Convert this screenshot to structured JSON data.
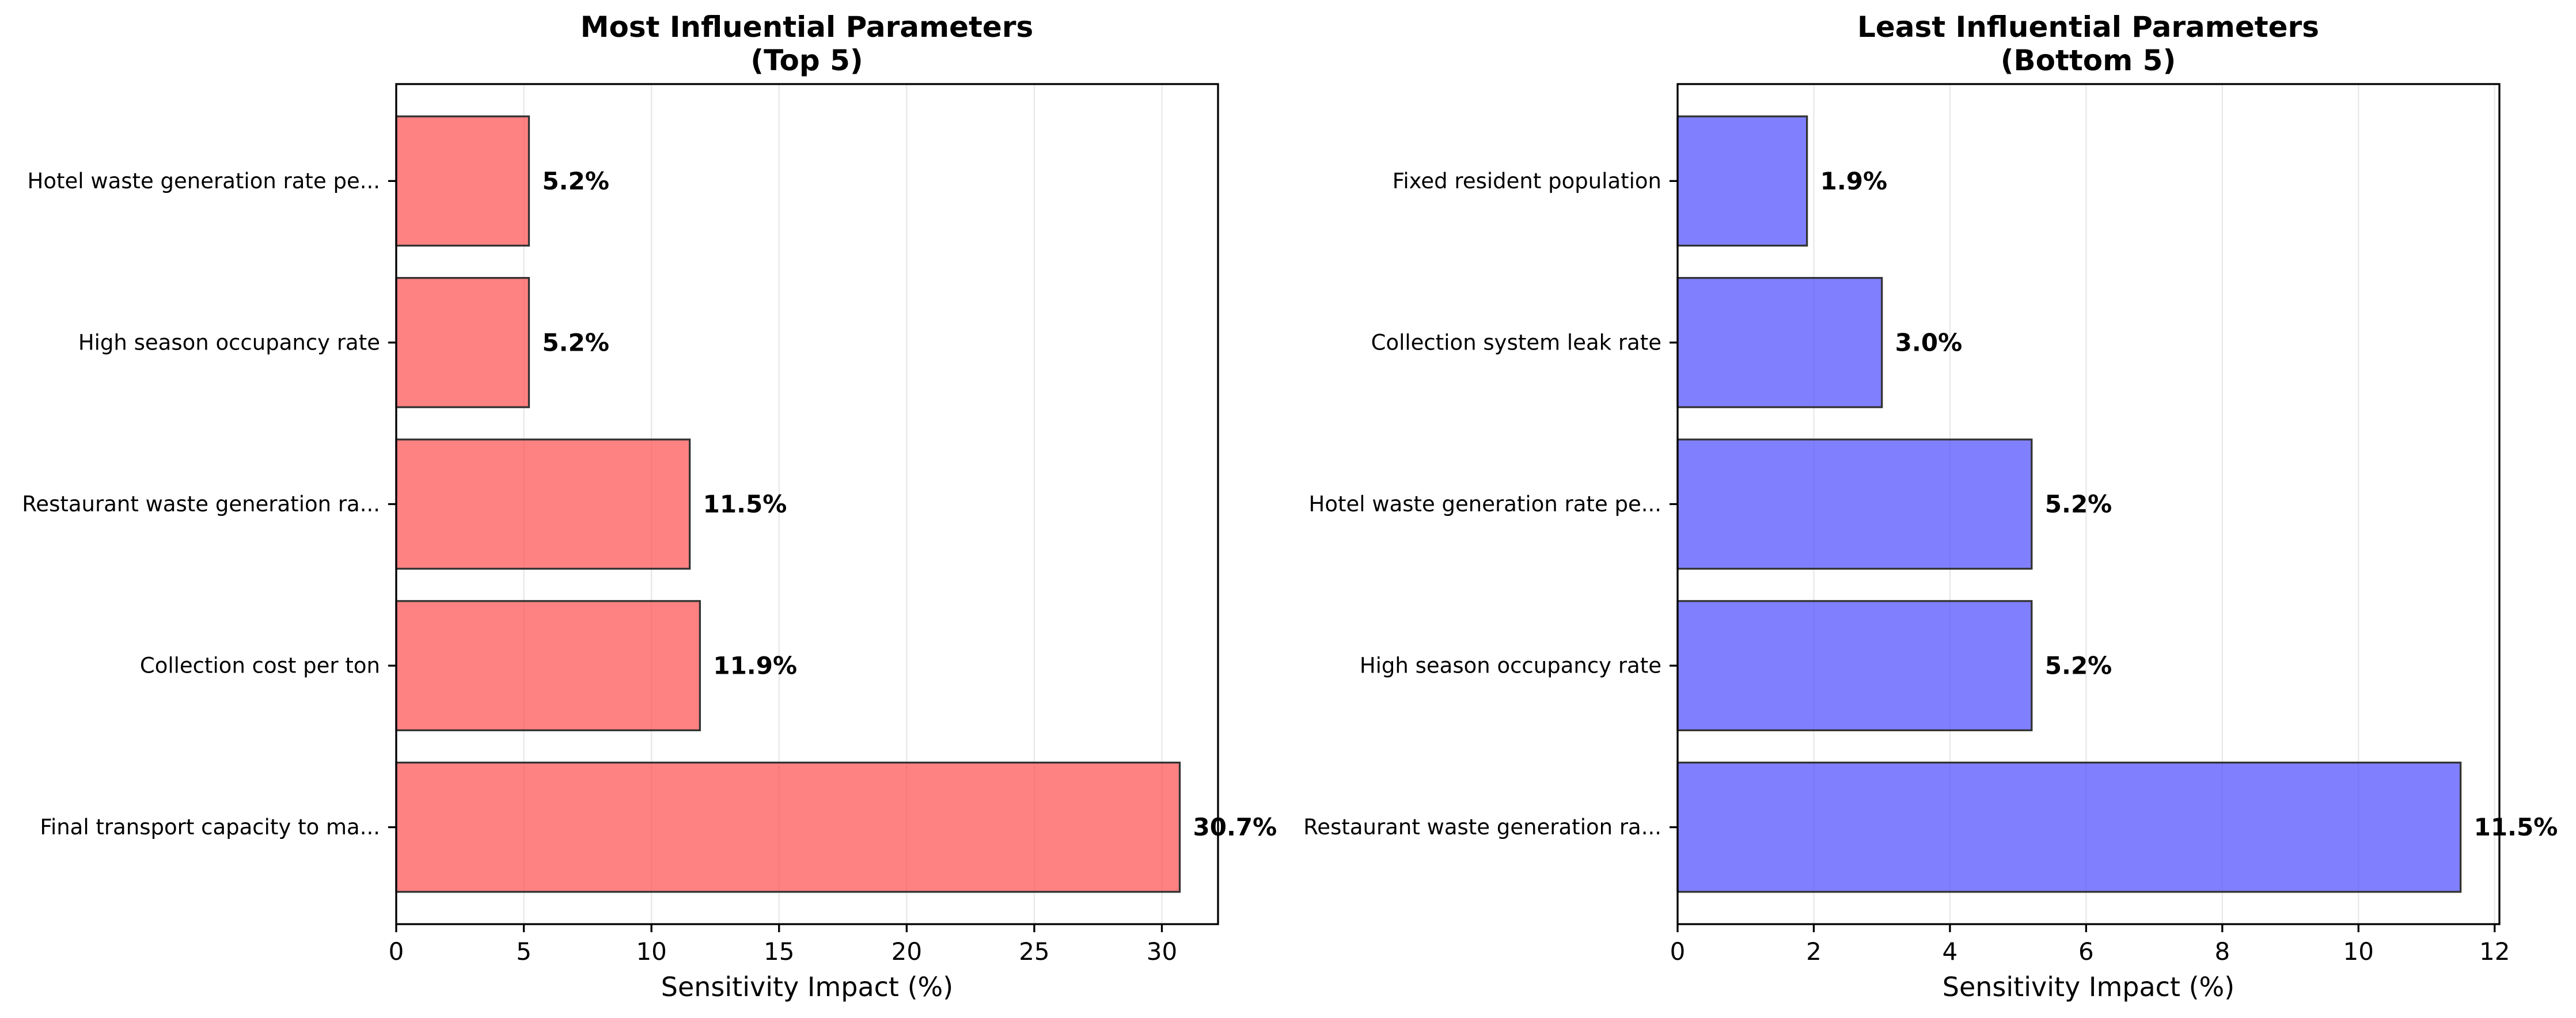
{
  "chart_data": [
    {
      "type": "bar",
      "orientation": "horizontal",
      "title": "Most Influential Parameters\n(Top 5)",
      "categories": [
        "Final transport capacity to ma...",
        "Collection cost per ton",
        "Restaurant waste generation ra...",
        "High season occupancy rate",
        "Hotel waste generation rate pe..."
      ],
      "values": [
        30.7,
        11.9,
        11.5,
        5.2,
        5.2
      ],
      "data_labels": [
        "30.7%",
        "11.9%",
        "11.5%",
        "5.2%",
        "5.2%"
      ],
      "xlabel": "Sensitivity Impact (%)",
      "ylabel": "",
      "xlim": [
        0,
        32.2
      ],
      "xticks": [
        0,
        5,
        10,
        15,
        20,
        25,
        30
      ],
      "color": "#ff4d4d",
      "edge_color": "#333333",
      "grid": "x"
    },
    {
      "type": "bar",
      "orientation": "horizontal",
      "title": "Least Influential Parameters\n(Bottom 5)",
      "categories": [
        "Restaurant waste generation ra...",
        "High season occupancy rate",
        "Hotel waste generation rate pe...",
        "Collection system leak rate",
        "Fixed resident population"
      ],
      "values": [
        11.5,
        5.2,
        5.2,
        3.0,
        1.9
      ],
      "data_labels": [
        "11.5%",
        "5.2%",
        "5.2%",
        "3.0%",
        "1.9%"
      ],
      "xlabel": "Sensitivity Impact (%)",
      "ylabel": "",
      "xlim": [
        0,
        12.07
      ],
      "xticks": [
        0,
        2,
        4,
        6,
        8,
        10,
        12
      ],
      "color": "#4a4aff",
      "edge_color": "#333333",
      "grid": "x"
    }
  ]
}
